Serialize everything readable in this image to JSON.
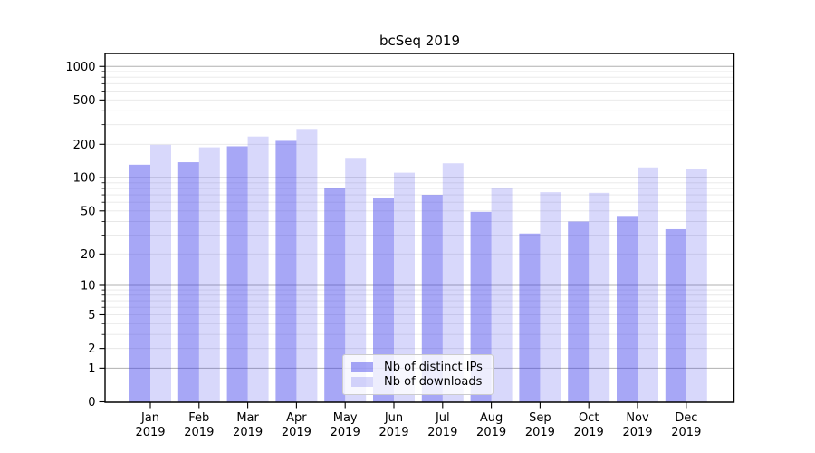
{
  "colors": {
    "bar_base": "#3c3ceb",
    "ips_fill": "rgba(60,60,235,0.45)",
    "downloads_fill": "rgba(60,60,235,0.20)",
    "major_grid": "#b0b0b0",
    "minor_grid": "#e7e7e7",
    "axis": "#000000",
    "tick_label": "#000000",
    "legend_border": "#cccccc",
    "background": "#ffffff"
  },
  "chart_data": {
    "type": "bar",
    "title": "bcSeq 2019",
    "categories": [
      "Jan 2019",
      "Feb 2019",
      "Mar 2019",
      "Apr 2019",
      "May 2019",
      "Jun 2019",
      "Jul 2019",
      "Aug 2019",
      "Sep 2019",
      "Oct 2019",
      "Nov 2019",
      "Dec 2019"
    ],
    "series": [
      {
        "name": "Nb of distinct IPs",
        "values": [
          131,
          138,
          192,
          215,
          80,
          66,
          70,
          49,
          31,
          40,
          45,
          34
        ],
        "fill": "rgba(60,60,235,0.45)"
      },
      {
        "name": "Nb of downloads",
        "values": [
          198,
          188,
          235,
          275,
          151,
          111,
          135,
          80,
          74,
          73,
          124,
          120
        ],
        "fill": "rgba(60,60,235,0.20)"
      }
    ],
    "xlabel": "",
    "ylabel": "",
    "yscale": "symlog",
    "yticks": [
      1000,
      500,
      200,
      100,
      50,
      20,
      10,
      5,
      2,
      1,
      0
    ],
    "ylim": [
      0,
      1290
    ],
    "grid": true,
    "legend_position": "lower-center"
  }
}
